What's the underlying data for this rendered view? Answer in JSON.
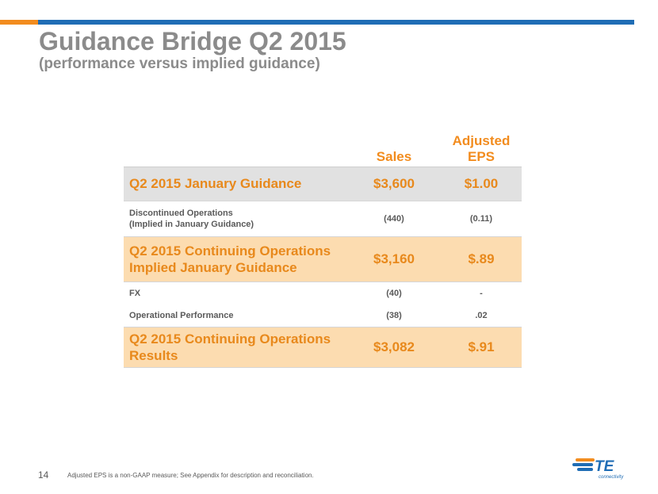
{
  "header": {
    "title": "Guidance Bridge Q2 2015",
    "subtitle": "(performance versus implied guidance)"
  },
  "table": {
    "columns": {
      "sales": "Sales",
      "eps": "Adjusted EPS"
    },
    "rows": [
      {
        "label": "Q2 2015 January Guidance",
        "sales": "$3,600",
        "eps": "$1.00"
      },
      {
        "label_line1": "Discontinued Operations",
        "label_line2": "(Implied in January Guidance)",
        "sales": "(440)",
        "eps": "(0.11)"
      },
      {
        "label_line1": "Q2 2015 Continuing Operations",
        "label_line2": "Implied January Guidance",
        "sales": "$3,160",
        "eps": "$.89"
      },
      {
        "label": "FX",
        "sales": "(40)",
        "eps": "-"
      },
      {
        "label": "Operational Performance",
        "sales": "(38)",
        "eps": ".02"
      },
      {
        "label_line1": "Q2 2015 Continuing Operations",
        "label_line2": "Results",
        "sales": "$3,082",
        "eps": "$.91"
      }
    ]
  },
  "footer": {
    "page_number": "14",
    "note": "Adjusted EPS is a non-GAAP measure; See Appendix for description and reconciliation.",
    "logo_text": "TE",
    "logo_subtext": "connectivity"
  },
  "colors": {
    "accent_orange": "#f28c1e",
    "accent_blue": "#1f6db5",
    "title_gray": "#8b8b8b"
  }
}
